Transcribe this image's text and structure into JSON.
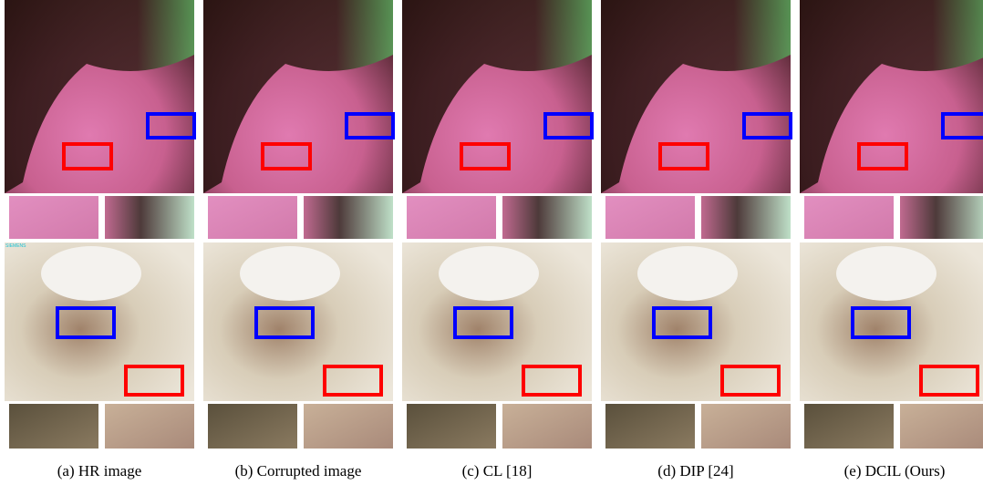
{
  "figure": {
    "captions": [
      "(a) HR image",
      "(b) Corrupted image",
      "(c) CL [18]",
      "(d) DIP [24]",
      "(e) DCIL (Ours)"
    ],
    "watermark": "SIEMENS"
  }
}
